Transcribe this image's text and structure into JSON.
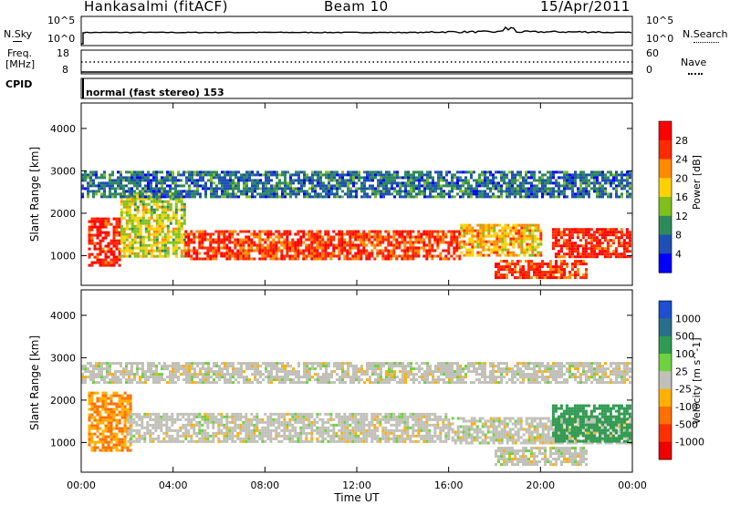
{
  "header": {
    "station": "Hankasalmi (fitACF)",
    "beam": "Beam 10",
    "date": "15/Apr/2011"
  },
  "noise_panel": {
    "left_label": "N.Sky",
    "right_label": "N.Search",
    "left_ticks": [
      "10^5",
      "10^0"
    ],
    "right_ticks": [
      "10^5",
      "10^0"
    ]
  },
  "freq_panel": {
    "left_label_1": "Freq.",
    "left_label_2": "[MHz]",
    "right_label": "Nave",
    "left_ticks": [
      "18",
      "8"
    ],
    "right_ticks": [
      "60",
      "0"
    ]
  },
  "cpid": {
    "label": "CPID",
    "value": "normal (fast stereo) 153"
  },
  "chart_data": [
    {
      "type": "heatmap",
      "name": "power",
      "ylabel": "Slant Range [km]",
      "xlabel": "",
      "ylim": [
        300,
        4600
      ],
      "yticks": [
        "1000",
        "2000",
        "3000",
        "4000"
      ],
      "ytick_values": [
        1000,
        2000,
        3000,
        4000
      ],
      "colorbar_label": "Power [dB]",
      "colorbar_ticks": [
        "4",
        "8",
        "12",
        "16",
        "20",
        "24",
        "28"
      ],
      "colorbar_colors": [
        "#0000ff",
        "#1f4fb5",
        "#2e8a5a",
        "#7fc01a",
        "#ffd000",
        "#ff8a00",
        "#ff2a00",
        "#ff0000"
      ],
      "bands": [
        {
          "t0": 0.3,
          "t1": 1.7,
          "r0": 800,
          "r1": 1900,
          "value": 28
        },
        {
          "t0": 1.7,
          "t1": 4.5,
          "r0": 1000,
          "r1": 2500,
          "value": 16
        },
        {
          "t0": 4.5,
          "t1": 16.5,
          "r0": 950,
          "r1": 1600,
          "value": 26
        },
        {
          "t0": 16.5,
          "t1": 20.0,
          "r0": 1000,
          "r1": 1750,
          "value": 20
        },
        {
          "t0": 18.0,
          "t1": 22.0,
          "r0": 450,
          "r1": 900,
          "value": 26
        },
        {
          "t0": 20.5,
          "t1": 23.9,
          "r0": 1000,
          "r1": 1650,
          "value": 28
        },
        {
          "t0": 0.0,
          "t1": 23.9,
          "r0": 2400,
          "r1": 3000,
          "value": 8
        }
      ]
    },
    {
      "type": "heatmap",
      "name": "velocity",
      "ylabel": "Slant Range [km]",
      "xlabel": "Time UT",
      "ylim": [
        300,
        4600
      ],
      "yticks": [
        "1000",
        "2000",
        "3000",
        "4000"
      ],
      "ytick_values": [
        1000,
        2000,
        3000,
        4000
      ],
      "xticks": [
        "00:00",
        "04:00",
        "08:00",
        "12:00",
        "16:00",
        "20:00",
        "00:00"
      ],
      "xtick_values": [
        0,
        4,
        8,
        12,
        16,
        20,
        24
      ],
      "colorbar_label": "Velocity [m s^-1]",
      "colorbar_ticks": [
        "1000",
        "500",
        "100",
        "25",
        "-25",
        "-100",
        "-500",
        "-1000"
      ],
      "colorbar_colors": [
        "#1d4fd0",
        "#2a6e8a",
        "#2f9a50",
        "#6fd040",
        "#c0c0b8",
        "#ffb000",
        "#ff7000",
        "#ff3000",
        "#ee0000"
      ],
      "bands": [
        {
          "t0": 0.3,
          "t1": 2.2,
          "r0": 800,
          "r1": 2200,
          "value": -100
        },
        {
          "t0": 2.0,
          "t1": 16.0,
          "r0": 1000,
          "r1": 1700,
          "value": 0
        },
        {
          "t0": 16.0,
          "t1": 23.9,
          "r0": 1000,
          "r1": 1600,
          "value": 0
        },
        {
          "t0": 18.0,
          "t1": 22.0,
          "r0": 450,
          "r1": 900,
          "value": 0
        },
        {
          "t0": 20.5,
          "t1": 23.9,
          "r0": 1000,
          "r1": 1900,
          "value": 300
        },
        {
          "t0": 0.0,
          "t1": 23.9,
          "r0": 2400,
          "r1": 2900,
          "value": 0
        }
      ]
    }
  ]
}
